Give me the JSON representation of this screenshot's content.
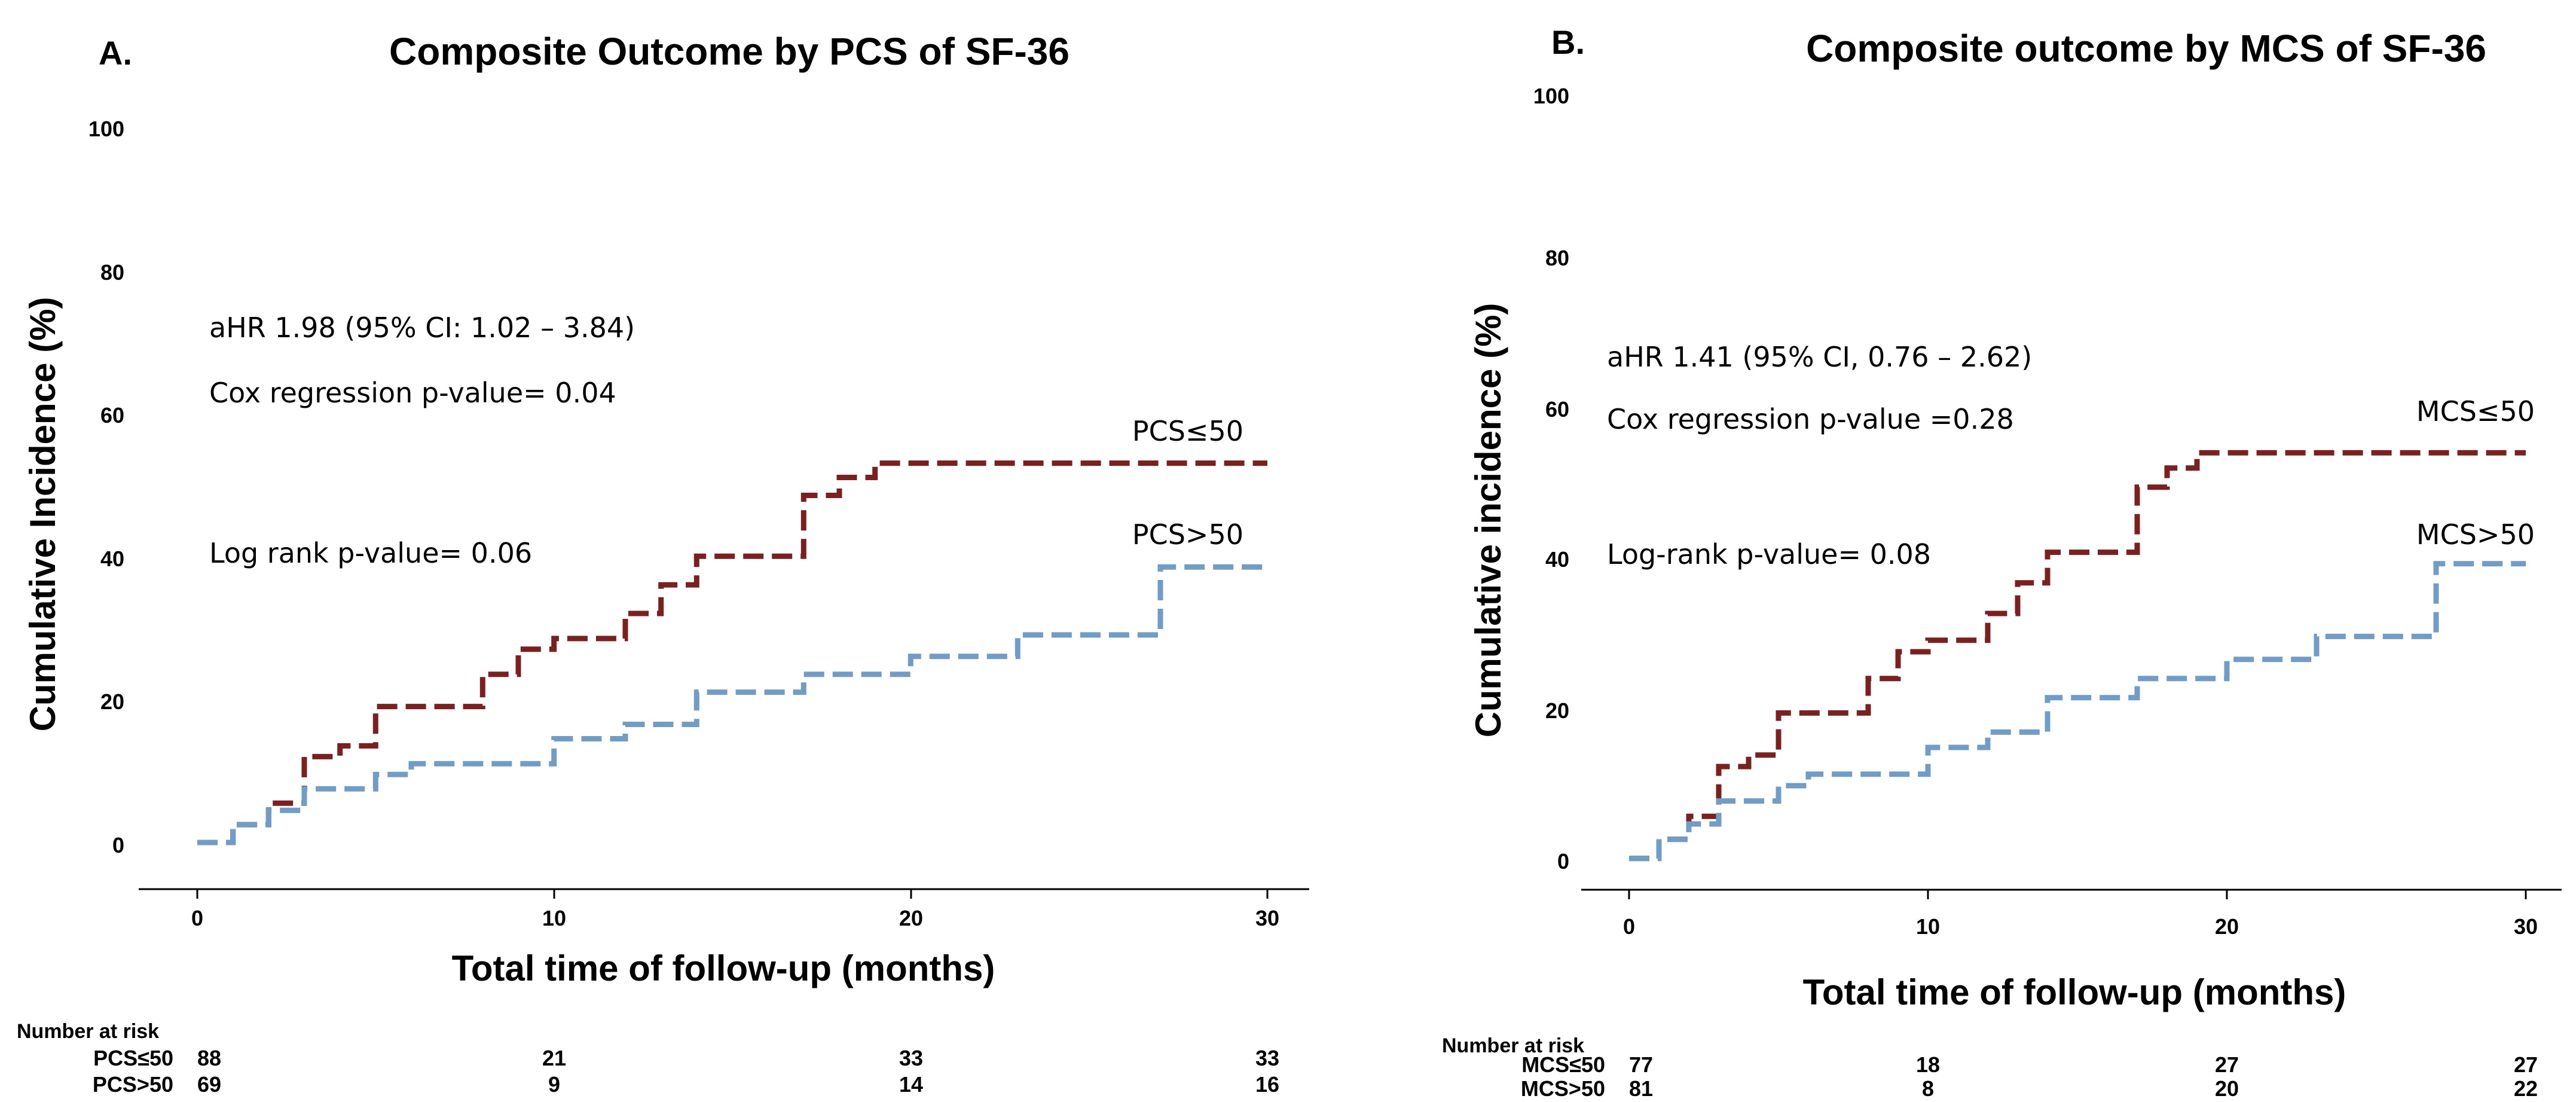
{
  "chart_data": [
    {
      "type": "line",
      "panel_label": "A.",
      "title": "Composite Outcome by PCS of SF-36",
      "xlabel": "Total time of follow-up (months)",
      "ylabel": "Cumulative Incidence (%)",
      "xlim": [
        0,
        30
      ],
      "ylim": [
        0,
        100
      ],
      "xticks": [
        "0",
        "10",
        "20",
        "30"
      ],
      "yticks": [
        "0",
        "20",
        "40",
        "60",
        "80",
        "100"
      ],
      "annotations": [
        "aHR 1.98 (95% CI: 1.02 – 3.84)",
        "Cox regression p-value= 0.04",
        "Log rank p-value= 0.06"
      ],
      "series": [
        {
          "name": "PCS≤50",
          "color": "#7b1f1f",
          "x": [
            0,
            1,
            2,
            3,
            4,
            5,
            8,
            9,
            10,
            12,
            13,
            14,
            17,
            18,
            19,
            30
          ],
          "y": [
            0.5,
            3,
            6,
            12.5,
            14,
            19.5,
            24,
            27.5,
            29,
            32.5,
            36.5,
            40.5,
            49,
            51.5,
            53.5,
            53.5
          ]
        },
        {
          "name": "PCS>50",
          "color": "#6f9dc8",
          "x": [
            0,
            1,
            2,
            3,
            5,
            6,
            10,
            12,
            14,
            17,
            20,
            23,
            27,
            30
          ],
          "y": [
            0.5,
            3,
            5,
            8,
            10,
            11.5,
            15,
            17,
            21.5,
            24,
            26.5,
            29.5,
            39,
            39
          ]
        }
      ],
      "risk_table": {
        "title": "Number at risk",
        "rows": [
          {
            "label": "PCS≤50",
            "values": [
              "88",
              "21",
              "33",
              "33"
            ]
          },
          {
            "label": "PCS>50",
            "values": [
              "69",
              "9",
              "14",
              "16"
            ]
          }
        ]
      }
    },
    {
      "type": "line",
      "panel_label": "B.",
      "title": "Composite outcome by MCS of SF-36",
      "xlabel": "Total time of follow-up (months)",
      "ylabel": "Cumulative incidence (%)",
      "xlim": [
        0,
        30
      ],
      "ylim": [
        0,
        100
      ],
      "xticks": [
        "0",
        "10",
        "20",
        "30"
      ],
      "yticks": [
        "0",
        "20",
        "40",
        "60",
        "80",
        "100"
      ],
      "annotations": [
        "aHR 1.41 (95% CI, 0.76 – 2.62)",
        "Cox regression p-value =0.28",
        "Log-rank p-value= 0.08"
      ],
      "series": [
        {
          "name": "MCS≤50",
          "color": "#7b1f1f",
          "x": [
            0,
            1,
            2,
            3,
            4,
            5,
            8,
            9,
            10,
            12,
            13,
            14,
            17,
            18,
            19,
            30
          ],
          "y": [
            0.5,
            3,
            6,
            12.5,
            14,
            19.5,
            24,
            27.5,
            29,
            32.5,
            36.5,
            40.5,
            49,
            51.5,
            53.5,
            53.5
          ]
        },
        {
          "name": "MCS>50",
          "color": "#6f9dc8",
          "x": [
            0,
            1,
            2,
            3,
            5,
            6,
            10,
            12,
            14,
            17,
            20,
            23,
            27,
            30
          ],
          "y": [
            0.5,
            3,
            5,
            8,
            10,
            11.5,
            15,
            17,
            21.5,
            24,
            26.5,
            29.5,
            39,
            39
          ]
        }
      ],
      "risk_table": {
        "title": "Number at risk",
        "rows": [
          {
            "label": "MCS≤50",
            "values": [
              "77",
              "18",
              "27",
              "27"
            ]
          },
          {
            "label": "MCS>50",
            "values": [
              "81",
              "8",
              "20",
              "22"
            ]
          }
        ]
      }
    }
  ]
}
